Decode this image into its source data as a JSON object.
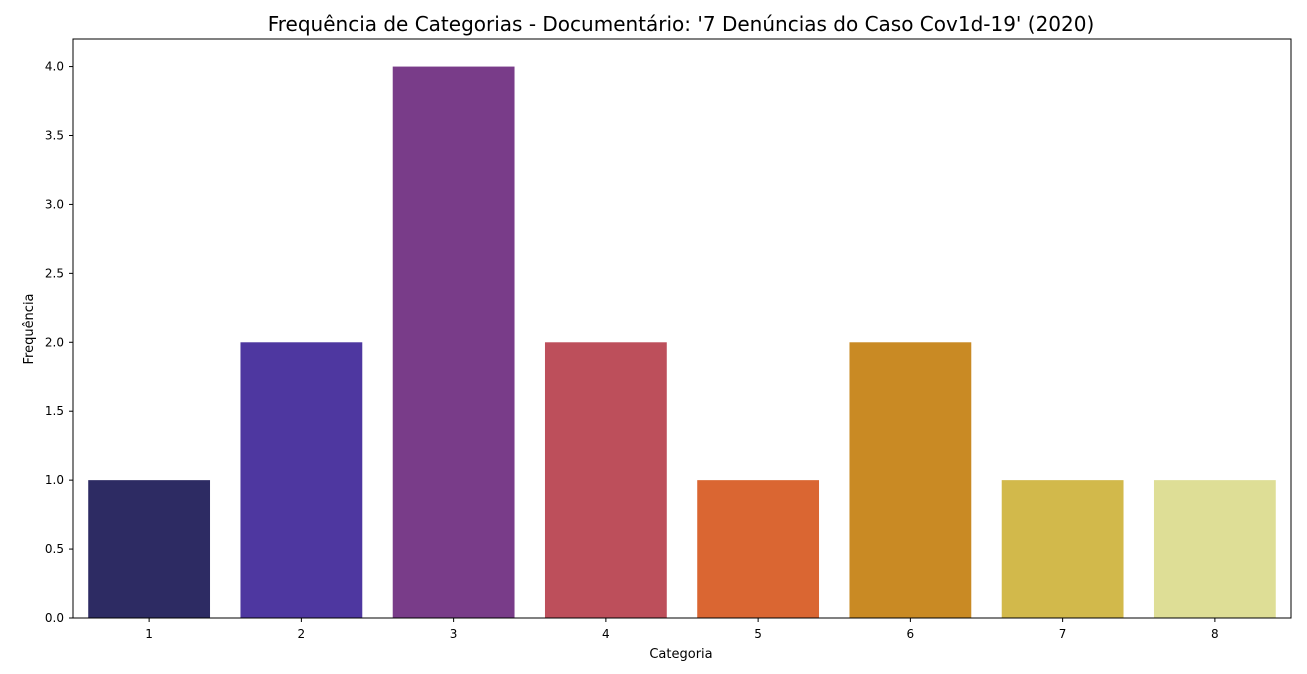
{
  "chart_data": {
    "type": "bar",
    "title": "Frequência de Categorias - Documentário: '7 Denúncias do Caso Cov1d-19' (2020)",
    "xlabel": "Categoria",
    "ylabel": "Frequência",
    "categories": [
      "1",
      "2",
      "3",
      "4",
      "5",
      "6",
      "7",
      "8"
    ],
    "values": [
      1,
      2,
      4,
      2,
      1,
      2,
      1,
      1
    ],
    "colors": [
      "#2d2b63",
      "#4e37a0",
      "#793c89",
      "#bd4f5b",
      "#da6632",
      "#c98a24",
      "#d2b94b",
      "#dede96"
    ],
    "ylim": [
      0,
      4.2
    ],
    "yticks": [
      "0.0",
      "0.5",
      "1.0",
      "1.5",
      "2.0",
      "2.5",
      "3.0",
      "3.5",
      "4.0"
    ],
    "ytick_values": [
      0,
      0.5,
      1,
      1.5,
      2,
      2.5,
      3,
      3.5,
      4
    ],
    "grid": false,
    "legend": "none"
  }
}
